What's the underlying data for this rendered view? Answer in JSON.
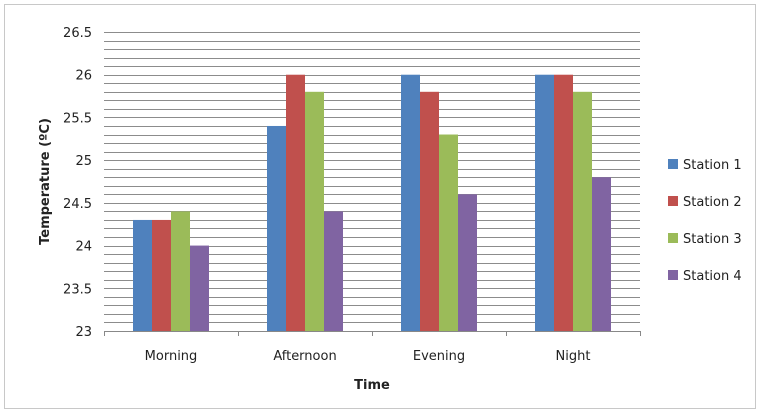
{
  "chart_data": {
    "type": "bar",
    "categories": [
      "Morning",
      "Afternoon",
      "Evening",
      "Night"
    ],
    "series": [
      {
        "name": "Station 1",
        "color": "#4F81BD",
        "values": [
          24.3,
          25.4,
          26.0,
          26.0
        ]
      },
      {
        "name": "Station 2",
        "color": "#C0504D",
        "values": [
          24.3,
          26.0,
          25.8,
          26.0
        ]
      },
      {
        "name": "Station 3",
        "color": "#9BBB59",
        "values": [
          24.4,
          25.8,
          25.3,
          25.8
        ]
      },
      {
        "name": "Station 4",
        "color": "#8064A2",
        "values": [
          24.0,
          24.4,
          24.6,
          24.8
        ]
      }
    ],
    "xlabel": "Time",
    "ylabel": "Temperature (ºC)",
    "ylim": [
      23,
      26.5
    ],
    "yticks": [
      "23",
      "23.5",
      "24",
      "24.5",
      "25",
      "25.5",
      "26",
      "26.5"
    ],
    "ytick_values": [
      23,
      23.5,
      24,
      24.5,
      25,
      25.5,
      26,
      26.5
    ],
    "minor_grid_step": 0.1,
    "grid": true,
    "legend_position": "right"
  }
}
